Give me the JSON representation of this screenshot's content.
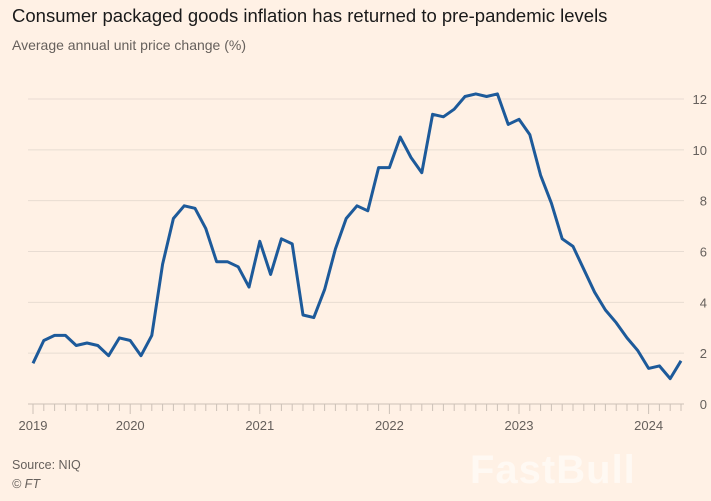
{
  "chart_data": {
    "type": "line",
    "title": "Consumer packaged goods inflation has returned to pre-pandemic levels",
    "subtitle": "Average annual unit price change (%)",
    "xlabel": "",
    "ylabel": "",
    "ylim": [
      0,
      12
    ],
    "yticks": [
      "0",
      "2",
      "4",
      "6",
      "8",
      "10",
      "12"
    ],
    "xticks": [
      "2019",
      "2020",
      "2021",
      "2022",
      "2023",
      "2024"
    ],
    "grid": true,
    "frequency": "monthly",
    "x_start": "2019-04",
    "x_end": "2024-04",
    "line_color": "#1d5a9a",
    "series": [
      {
        "values": [
          1.6,
          2.5,
          2.7,
          2.7,
          2.3,
          2.4,
          2.3,
          1.9,
          2.6,
          2.5,
          1.9,
          2.7,
          5.5,
          7.3,
          7.8,
          7.7,
          6.9,
          5.6,
          5.6,
          5.4,
          4.6,
          6.4,
          5.1,
          6.5,
          6.3,
          3.5,
          3.4,
          4.5,
          6.1,
          7.3,
          7.8,
          7.6,
          9.3,
          9.3,
          10.5,
          9.7,
          9.1,
          11.4,
          11.3,
          11.6,
          12.1,
          12.2,
          12.1,
          12.2,
          11.0,
          11.2,
          10.6,
          9.0,
          7.9,
          6.5,
          6.2,
          5.3,
          4.4,
          3.7,
          3.2,
          2.6,
          2.1,
          1.4,
          1.5,
          1.0,
          1.7
        ]
      }
    ]
  },
  "footer": {
    "source": "Source: NIQ",
    "copyright": "© FT"
  },
  "watermark": "FastBull"
}
